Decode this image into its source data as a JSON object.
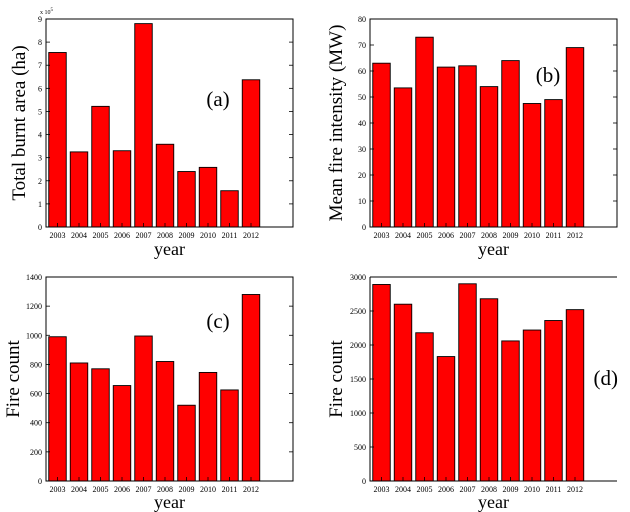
{
  "bar_color": "#ff0000",
  "chart_data": [
    {
      "type": "bar",
      "panel_label": "(a)",
      "categories": [
        "2003",
        "2004",
        "2005",
        "2006",
        "2007",
        "2008",
        "2009",
        "2010",
        "2011",
        "2012"
      ],
      "values": [
        755000,
        325000,
        522000,
        330000,
        880000,
        358000,
        240000,
        258000,
        157000,
        637000
      ],
      "xlabel": "year",
      "ylabel": "Total burnt area (ha)",
      "ylim": [
        0,
        900000
      ],
      "yticks": [
        0,
        100000,
        200000,
        300000,
        400000,
        500000,
        600000,
        700000,
        800000,
        900000
      ],
      "ytick_labels": [
        "0",
        "1",
        "2",
        "3",
        "4",
        "5",
        "6",
        "7",
        "8",
        "9"
      ],
      "y_multiplier": "x 10",
      "y_multiplier_exp": "5",
      "grid": false
    },
    {
      "type": "bar",
      "panel_label": "(b)",
      "categories": [
        "2003",
        "2004",
        "2005",
        "2006",
        "2007",
        "2008",
        "2009",
        "2010",
        "2011",
        "2012"
      ],
      "values": [
        63,
        53.5,
        73,
        61.5,
        62,
        54,
        64,
        47.5,
        49,
        69
      ],
      "xlabel": "year",
      "ylabel": "Mean fire intensity (MW)",
      "ylim": [
        0,
        80
      ],
      "yticks": [
        0,
        10,
        20,
        30,
        40,
        50,
        60,
        70,
        80
      ],
      "ytick_labels": [
        "0",
        "10",
        "20",
        "30",
        "40",
        "50",
        "60",
        "70",
        "80"
      ],
      "grid": false
    },
    {
      "type": "bar",
      "panel_label": "(c)",
      "categories": [
        "2003",
        "2004",
        "2005",
        "2006",
        "2007",
        "2008",
        "2009",
        "2010",
        "2011",
        "2012"
      ],
      "values": [
        990,
        810,
        770,
        655,
        995,
        820,
        520,
        745,
        625,
        1280
      ],
      "xlabel": "year",
      "ylabel": "Fire count",
      "ylim": [
        0,
        1400
      ],
      "yticks": [
        0,
        200,
        400,
        600,
        800,
        1000,
        1200,
        1400
      ],
      "ytick_labels": [
        "0",
        "200",
        "400",
        "600",
        "800",
        "1000",
        "1200",
        "1400"
      ],
      "grid": false
    },
    {
      "type": "bar",
      "panel_label": "(d)",
      "categories": [
        "2003",
        "2004",
        "2005",
        "2006",
        "2007",
        "2008",
        "2009",
        "2010",
        "2011",
        "2012"
      ],
      "values": [
        2890,
        2600,
        2180,
        1830,
        2900,
        2680,
        2060,
        2220,
        2360,
        2520
      ],
      "xlabel": "year",
      "ylabel": "Fire count",
      "ylim": [
        0,
        3000
      ],
      "yticks": [
        0,
        500,
        1000,
        1500,
        2000,
        2500,
        3000
      ],
      "ytick_labels": [
        "0",
        "500",
        "1000",
        "1500",
        "2000",
        "2500",
        "3000"
      ],
      "grid": false
    }
  ]
}
